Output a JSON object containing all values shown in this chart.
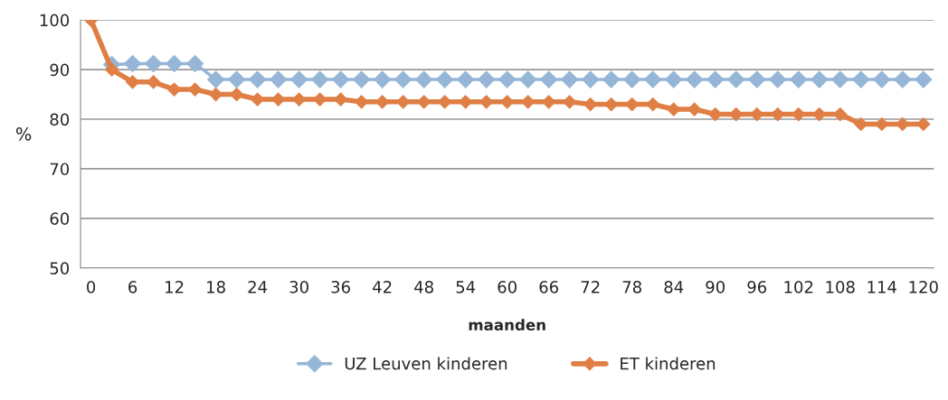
{
  "chart_data": {
    "type": "line",
    "xlabel": "maanden",
    "ylabel": "%",
    "x": [
      0,
      3,
      6,
      9,
      12,
      15,
      18,
      21,
      24,
      27,
      30,
      33,
      36,
      39,
      42,
      45,
      48,
      51,
      54,
      57,
      60,
      63,
      66,
      69,
      72,
      75,
      78,
      81,
      84,
      87,
      90,
      93,
      96,
      99,
      102,
      105,
      108,
      111,
      114,
      117,
      120
    ],
    "series": [
      {
        "name": "UZ Leuven kinderen",
        "color": "#95b6d6",
        "values": [
          null,
          91,
          91.2,
          91.2,
          91.2,
          91.2,
          88,
          88,
          88,
          88,
          88,
          88,
          88,
          88,
          88,
          88,
          88,
          88,
          88,
          88,
          88,
          88,
          88,
          88,
          88,
          88,
          88,
          88,
          88,
          88,
          88,
          88,
          88,
          88,
          88,
          88,
          88,
          88,
          88,
          88,
          88
        ]
      },
      {
        "name": "ET kinderen",
        "color": "#e07f45",
        "values": [
          100,
          90,
          87.5,
          87.5,
          86,
          86,
          85,
          85,
          84,
          84,
          84,
          84,
          84,
          83.5,
          83.5,
          83.5,
          83.5,
          83.5,
          83.5,
          83.5,
          83.5,
          83.5,
          83.5,
          83.5,
          83,
          83,
          83,
          83,
          82,
          82,
          81,
          81,
          81,
          81,
          81,
          81,
          81,
          79,
          79,
          79,
          79
        ]
      }
    ],
    "xlim": [
      -1.5,
      121.5
    ],
    "xticks": [
      0,
      6,
      12,
      18,
      24,
      30,
      36,
      42,
      48,
      54,
      60,
      66,
      72,
      78,
      84,
      90,
      96,
      102,
      108,
      114,
      120
    ],
    "ylim": [
      50,
      100
    ],
    "yticks": [
      50,
      60,
      70,
      80,
      90,
      100
    ],
    "grid": "y",
    "legend": "bottom",
    "marker": "diamond",
    "line_style": "solid"
  }
}
